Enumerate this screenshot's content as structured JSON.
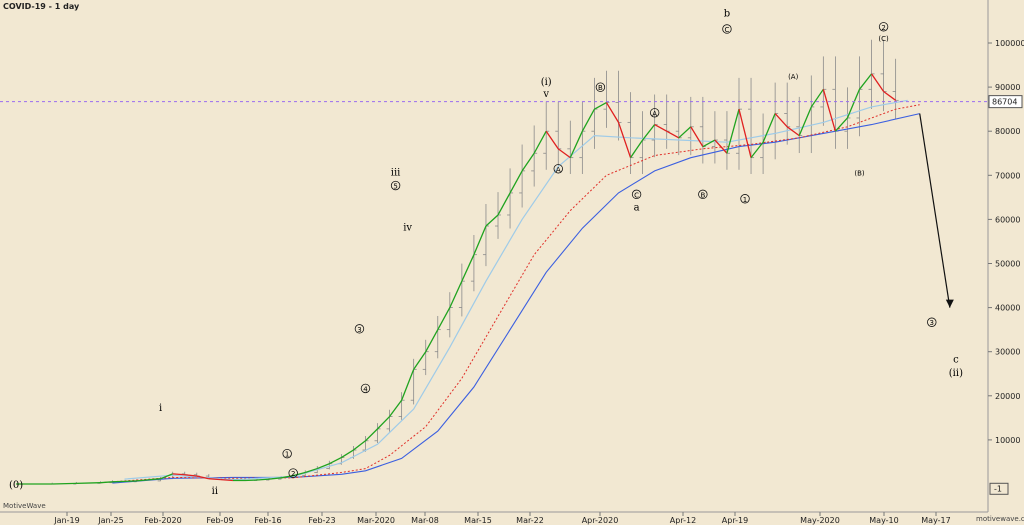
{
  "title": "COVID-19 - 1 day",
  "watermark": "MotiveWave",
  "footer_url": "motivewave.com",
  "chart_data": {
    "type": "line",
    "y_axis_ticks": [
      10000,
      20000,
      30000,
      40000,
      50000,
      60000,
      70000,
      80000,
      90000,
      100000
    ],
    "y_axis_tick_labels": [
      "10000",
      "20000",
      "30000",
      "40000",
      "50000",
      "60000",
      "70000",
      "80000",
      "90000",
      "100000"
    ],
    "ylim": [
      -1200,
      109000
    ],
    "x_axis_labels": [
      "Jan-19",
      "Jan-25",
      "Feb-2020",
      "Feb-09",
      "Feb-16",
      "Feb-23",
      "Mar-2020",
      "Mar-08",
      "Mar-15",
      "Mar-22",
      "Apr-2020",
      "Apr-12",
      "Apr-19",
      "May-2020",
      "May-10",
      "May-17"
    ],
    "current_value": 86704,
    "current_value_label": "86704",
    "axis_marker_label": "-1",
    "price_series": [
      [
        -6,
        0
      ],
      [
        0,
        0
      ],
      [
        4,
        150
      ],
      [
        8,
        300
      ],
      [
        10,
        500
      ],
      [
        14,
        700
      ],
      [
        18,
        1200
      ],
      [
        20,
        2300
      ],
      [
        22,
        2100
      ],
      [
        24,
        1800
      ],
      [
        26,
        1200
      ],
      [
        28,
        1000
      ],
      [
        30,
        800
      ],
      [
        32,
        800
      ],
      [
        34,
        900
      ],
      [
        36,
        1100
      ],
      [
        38,
        1400
      ],
      [
        40,
        1900
      ],
      [
        42,
        2600
      ],
      [
        44,
        3500
      ],
      [
        46,
        4600
      ],
      [
        48,
        6000
      ],
      [
        50,
        7700
      ],
      [
        52,
        9800
      ],
      [
        54,
        12500
      ],
      [
        56,
        15300
      ],
      [
        58,
        19000
      ],
      [
        60,
        26000
      ],
      [
        62,
        30000
      ],
      [
        64,
        35000
      ],
      [
        66,
        40000
      ],
      [
        68,
        46000
      ],
      [
        70,
        52000
      ],
      [
        72,
        58500
      ],
      [
        74,
        61000
      ],
      [
        76,
        66000
      ],
      [
        78,
        71000
      ],
      [
        80,
        75000
      ],
      [
        82,
        80000
      ],
      [
        84,
        76000
      ],
      [
        86,
        74000
      ],
      [
        88,
        80000
      ],
      [
        90,
        85000
      ],
      [
        92,
        86500
      ],
      [
        94,
        82000
      ],
      [
        96,
        74000
      ],
      [
        98,
        78000
      ],
      [
        100,
        81500
      ],
      [
        102,
        80000
      ],
      [
        104,
        78500
      ],
      [
        106,
        81000
      ],
      [
        108,
        76500
      ],
      [
        110,
        78000
      ],
      [
        112,
        75000
      ],
      [
        114,
        85000
      ],
      [
        116,
        74000
      ],
      [
        118,
        77500
      ],
      [
        120,
        84000
      ],
      [
        122,
        81000
      ],
      [
        124,
        79000
      ],
      [
        126,
        85500
      ],
      [
        128,
        89500
      ],
      [
        130,
        80000
      ],
      [
        132,
        83000
      ],
      [
        134,
        89500
      ],
      [
        136,
        93000
      ],
      [
        138,
        89000
      ],
      [
        140,
        87000
      ]
    ],
    "ma_fast": [
      [
        12,
        1100
      ],
      [
        20,
        2000
      ],
      [
        30,
        1000
      ],
      [
        40,
        1700
      ],
      [
        48,
        4800
      ],
      [
        54,
        9000
      ],
      [
        60,
        17000
      ],
      [
        66,
        31000
      ],
      [
        72,
        46000
      ],
      [
        78,
        60000
      ],
      [
        84,
        72000
      ],
      [
        90,
        79000
      ],
      [
        96,
        78500
      ],
      [
        104,
        78000
      ],
      [
        112,
        77500
      ],
      [
        120,
        79500
      ],
      [
        128,
        82000
      ],
      [
        136,
        85500
      ],
      [
        142,
        87000
      ]
    ],
    "ma_mid": [
      [
        8,
        300
      ],
      [
        20,
        1500
      ],
      [
        30,
        1300
      ],
      [
        40,
        1400
      ],
      [
        48,
        2600
      ],
      [
        52,
        3500
      ],
      [
        56,
        6500
      ],
      [
        62,
        13000
      ],
      [
        68,
        24000
      ],
      [
        74,
        38000
      ],
      [
        80,
        52000
      ],
      [
        86,
        62000
      ],
      [
        92,
        70000
      ],
      [
        100,
        74500
      ],
      [
        108,
        76000
      ],
      [
        116,
        77000
      ],
      [
        124,
        78500
      ],
      [
        132,
        81000
      ],
      [
        140,
        85000
      ],
      [
        144,
        86000
      ]
    ],
    "ma_slow": [
      [
        10,
        200
      ],
      [
        20,
        1300
      ],
      [
        30,
        1500
      ],
      [
        40,
        1500
      ],
      [
        48,
        2200
      ],
      [
        52,
        3000
      ],
      [
        58,
        5800
      ],
      [
        64,
        12000
      ],
      [
        70,
        22000
      ],
      [
        76,
        35000
      ],
      [
        82,
        48000
      ],
      [
        88,
        58000
      ],
      [
        94,
        66000
      ],
      [
        100,
        71000
      ],
      [
        106,
        74000
      ],
      [
        114,
        76500
      ],
      [
        120,
        77500
      ],
      [
        128,
        79500
      ],
      [
        136,
        81500
      ],
      [
        144,
        84000
      ]
    ],
    "projection": [
      [
        144,
        84000
      ],
      [
        148,
        40000
      ]
    ],
    "wave_labels": [
      {
        "x": -6,
        "y": -900,
        "text": "(0)",
        "style": "roman"
      },
      {
        "x": 18,
        "y": 16500,
        "text": "i",
        "style": "roman"
      },
      {
        "x": 27,
        "y": -2300,
        "text": "ii",
        "style": "roman"
      },
      {
        "x": 57,
        "y": 70000,
        "text": "iii",
        "style": "roman"
      },
      {
        "x": 59,
        "y": 57500,
        "text": "iv",
        "style": "roman"
      },
      {
        "x": 82,
        "y": 90500,
        "text": "(i)",
        "style": "roman"
      },
      {
        "x": 82,
        "y": 87800,
        "text": "v",
        "style": "roman"
      },
      {
        "x": 97,
        "y": 62000,
        "text": "a",
        "style": "roman"
      },
      {
        "x": 112,
        "y": 106000,
        "text": "b",
        "style": "roman"
      },
      {
        "x": 150,
        "y": 27500,
        "text": "c",
        "style": "roman"
      },
      {
        "x": 150,
        "y": 24500,
        "text": "(ii)",
        "style": "roman"
      },
      {
        "x": 39,
        "y": 6200,
        "text": "1",
        "style": "circle"
      },
      {
        "x": 40,
        "y": 1800,
        "text": "2",
        "style": "circle"
      },
      {
        "x": 51,
        "y": 34500,
        "text": "3",
        "style": "circle"
      },
      {
        "x": 52,
        "y": 21000,
        "text": "4",
        "style": "circle"
      },
      {
        "x": 57,
        "y": 67000,
        "text": "5",
        "style": "circle"
      },
      {
        "x": 84,
        "y": 70800,
        "text": "A",
        "style": "circle"
      },
      {
        "x": 91,
        "y": 89300,
        "text": "B",
        "style": "circle"
      },
      {
        "x": 97,
        "y": 65000,
        "text": "C",
        "style": "circle"
      },
      {
        "x": 100,
        "y": 83500,
        "text": "A",
        "style": "circle"
      },
      {
        "x": 108,
        "y": 65000,
        "text": "B",
        "style": "circle"
      },
      {
        "x": 112,
        "y": 102500,
        "text": "C",
        "style": "circle"
      },
      {
        "x": 115,
        "y": 64000,
        "text": "1",
        "style": "circle"
      },
      {
        "x": 138,
        "y": 103000,
        "text": "2",
        "style": "circle"
      },
      {
        "x": 146,
        "y": 36000,
        "text": "3",
        "style": "circle"
      },
      {
        "x": 123,
        "y": 91800,
        "text": "(A)",
        "style": "paren"
      },
      {
        "x": 134,
        "y": 70000,
        "text": "(B)",
        "style": "paren"
      },
      {
        "x": 138,
        "y": 100500,
        "text": "(C)",
        "style": "paren"
      }
    ]
  }
}
